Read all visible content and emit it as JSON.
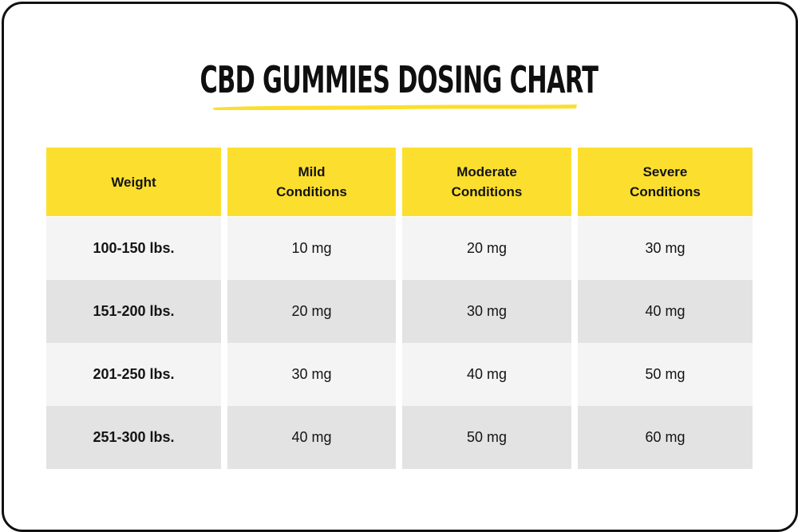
{
  "title": "CBD GUMMIES DOSING CHART",
  "colors": {
    "header": "#fcdf2e",
    "row_light": "#f4f4f4",
    "row_dark": "#e3e3e3",
    "underline": "#fcdf2e",
    "text": "#141414"
  },
  "table": {
    "headers": [
      [
        "Weight"
      ],
      [
        "Mild",
        "Conditions"
      ],
      [
        "Moderate",
        "Conditions"
      ],
      [
        "Severe",
        "Conditions"
      ]
    ],
    "rows": [
      [
        "100-150 lbs.",
        "10 mg",
        "20 mg",
        "30 mg"
      ],
      [
        "151-200 lbs.",
        "20 mg",
        "30 mg",
        "40 mg"
      ],
      [
        "201-250 lbs.",
        "30 mg",
        "40 mg",
        "50 mg"
      ],
      [
        "251-300 lbs.",
        "40 mg",
        "50 mg",
        "60 mg"
      ]
    ]
  }
}
